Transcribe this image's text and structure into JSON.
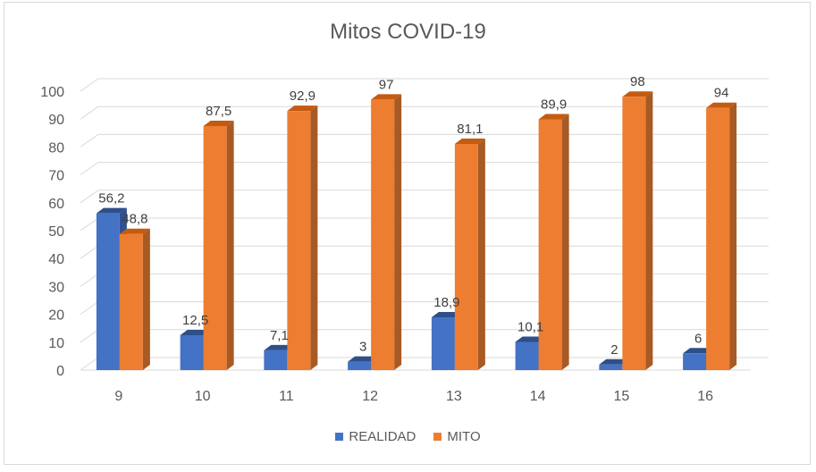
{
  "chart_data": {
    "type": "bar",
    "title": "Mitos COVID-19",
    "categories": [
      "9",
      "10",
      "11",
      "12",
      "13",
      "14",
      "15",
      "16"
    ],
    "series": [
      {
        "name": "REALIDAD",
        "color": "#4472c4",
        "side_color": "#2f528f",
        "top_color": "#2e4f8a",
        "values": [
          56.2,
          12.5,
          7.1,
          3,
          18.9,
          10.1,
          2,
          6
        ],
        "labels": [
          "56,2",
          "12,5",
          "7,1",
          "3",
          "18,9",
          "10,1",
          "2",
          "6"
        ]
      },
      {
        "name": "MITO",
        "color": "#ed7d31",
        "side_color": "#a85a24",
        "top_color": "#c55a11",
        "values": [
          48.8,
          87.5,
          92.9,
          97,
          81.1,
          89.9,
          98,
          94
        ],
        "labels": [
          "48,8",
          "87,5",
          "92,9",
          "97",
          "81,1",
          "89,9",
          "98",
          "94"
        ]
      }
    ],
    "y_ticks": [
      "0",
      "10",
      "20",
      "30",
      "40",
      "50",
      "60",
      "70",
      "80",
      "90",
      "100"
    ],
    "ylim": [
      0,
      100
    ],
    "grid": true,
    "legend": "bottom",
    "xlabel": "",
    "ylabel": ""
  }
}
